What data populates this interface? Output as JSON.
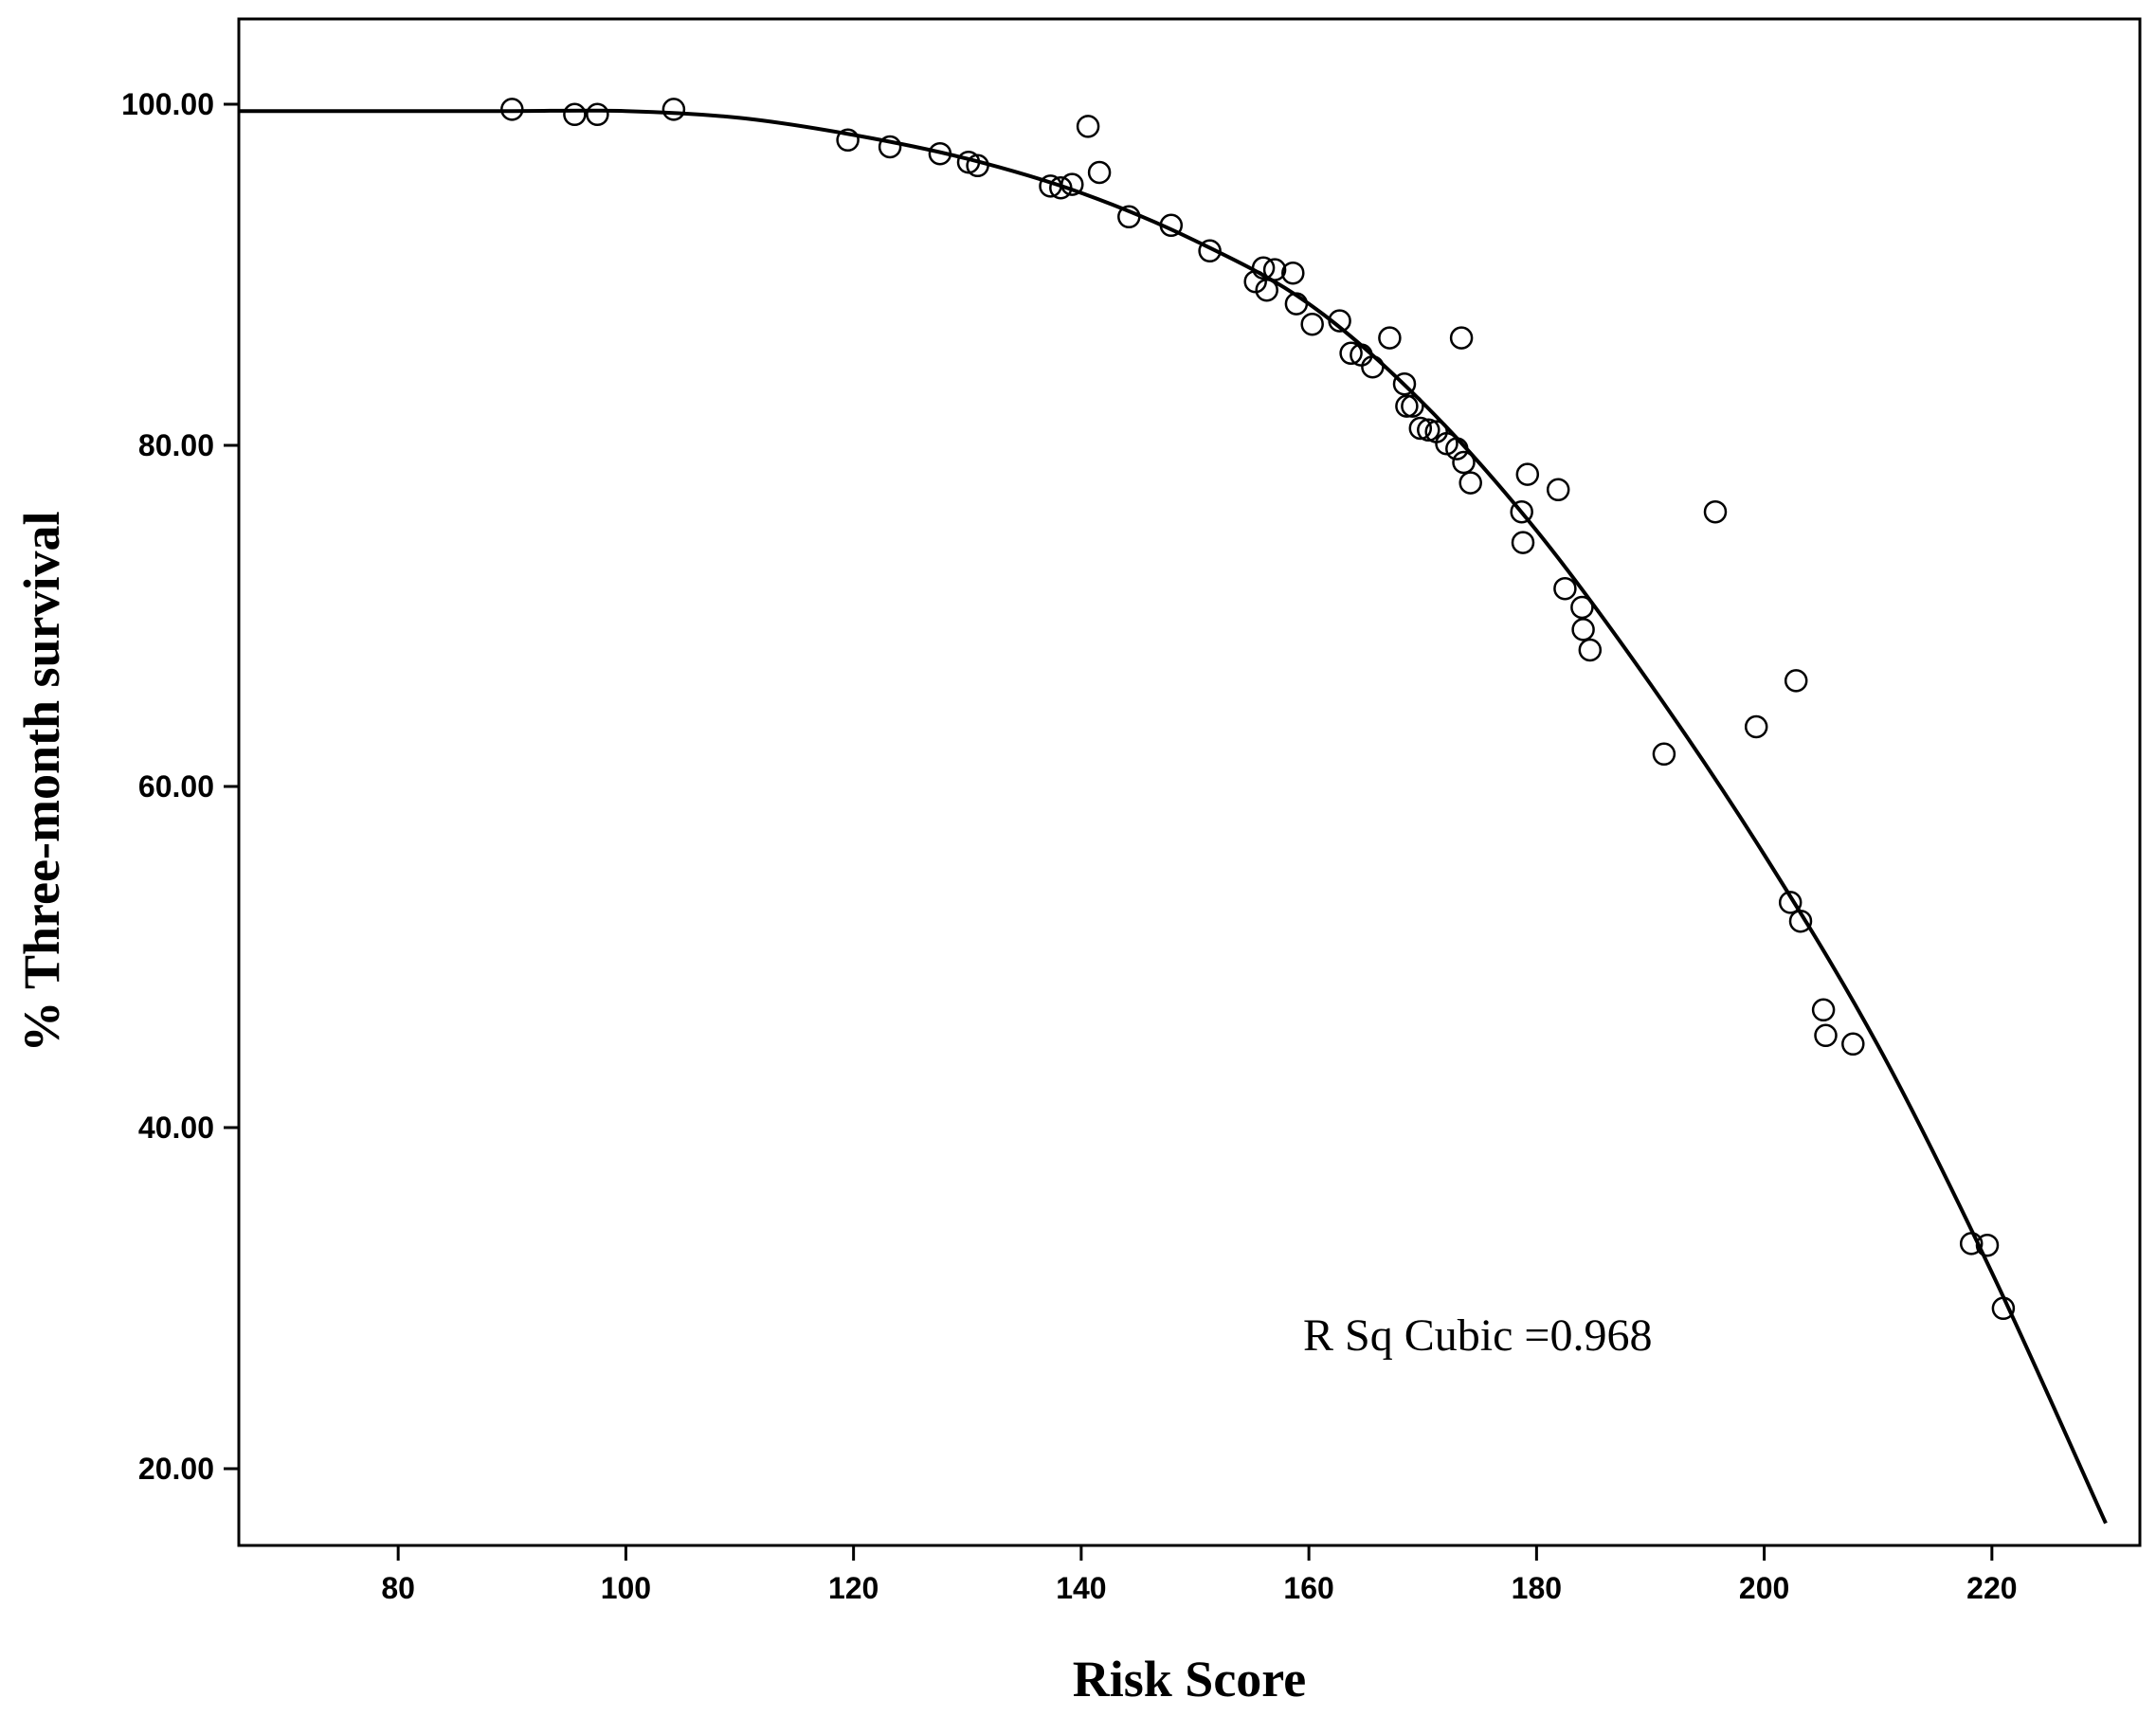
{
  "chart_data": {
    "type": "scatter",
    "title": "",
    "xlabel": "Risk Score",
    "ylabel": "% Three-month survival",
    "xlim": [
      66,
      233
    ],
    "ylim": [
      15.5,
      105
    ],
    "x_ticks": [
      80,
      100,
      120,
      140,
      160,
      180,
      200,
      220
    ],
    "y_ticks": [
      20,
      40,
      60,
      80,
      100
    ],
    "x_tick_labels": [
      "80",
      "100",
      "120",
      "140",
      "160",
      "180",
      "200",
      "220"
    ],
    "y_tick_labels": [
      "20.00",
      "40.00",
      "60.00",
      "80.00",
      "100.00"
    ],
    "grid": false,
    "legend": "none",
    "annotation": "R Sq Cubic =0.968",
    "marker_color": "#000000",
    "points": [
      {
        "x": 90,
        "y": 99.7
      },
      {
        "x": 95.5,
        "y": 99.4
      },
      {
        "x": 97.5,
        "y": 99.4
      },
      {
        "x": 104.2,
        "y": 99.7
      },
      {
        "x": 119.5,
        "y": 97.9
      },
      {
        "x": 123.2,
        "y": 97.5
      },
      {
        "x": 127.6,
        "y": 97.1
      },
      {
        "x": 130.1,
        "y": 96.6
      },
      {
        "x": 130.9,
        "y": 96.4
      },
      {
        "x": 137.3,
        "y": 95.2
      },
      {
        "x": 138.2,
        "y": 95.1
      },
      {
        "x": 139.2,
        "y": 95.3
      },
      {
        "x": 140.6,
        "y": 98.7
      },
      {
        "x": 141.6,
        "y": 96.0
      },
      {
        "x": 144.2,
        "y": 93.4
      },
      {
        "x": 147.9,
        "y": 92.9
      },
      {
        "x": 151.3,
        "y": 91.4
      },
      {
        "x": 155.3,
        "y": 89.6
      },
      {
        "x": 156.0,
        "y": 90.4
      },
      {
        "x": 156.3,
        "y": 89.1
      },
      {
        "x": 157.0,
        "y": 90.3
      },
      {
        "x": 158.6,
        "y": 90.1
      },
      {
        "x": 158.9,
        "y": 88.3
      },
      {
        "x": 160.3,
        "y": 87.1
      },
      {
        "x": 162.7,
        "y": 87.3
      },
      {
        "x": 163.7,
        "y": 85.4
      },
      {
        "x": 164.6,
        "y": 85.3
      },
      {
        "x": 165.6,
        "y": 84.6
      },
      {
        "x": 167.1,
        "y": 86.3
      },
      {
        "x": 168.4,
        "y": 83.6
      },
      {
        "x": 168.6,
        "y": 82.3
      },
      {
        "x": 169.1,
        "y": 82.3
      },
      {
        "x": 169.8,
        "y": 81.0
      },
      {
        "x": 170.5,
        "y": 80.9
      },
      {
        "x": 171.2,
        "y": 80.8
      },
      {
        "x": 172.1,
        "y": 80.1
      },
      {
        "x": 173.0,
        "y": 79.8
      },
      {
        "x": 173.4,
        "y": 86.3
      },
      {
        "x": 173.6,
        "y": 79.0
      },
      {
        "x": 174.2,
        "y": 77.8
      },
      {
        "x": 178.7,
        "y": 76.1
      },
      {
        "x": 178.8,
        "y": 74.3
      },
      {
        "x": 179.2,
        "y": 78.3
      },
      {
        "x": 181.9,
        "y": 77.4
      },
      {
        "x": 182.5,
        "y": 71.6
      },
      {
        "x": 184.0,
        "y": 70.5
      },
      {
        "x": 184.1,
        "y": 69.2
      },
      {
        "x": 184.7,
        "y": 68.0
      },
      {
        "x": 191.2,
        "y": 61.9
      },
      {
        "x": 195.7,
        "y": 76.1
      },
      {
        "x": 199.3,
        "y": 63.5
      },
      {
        "x": 202.8,
        "y": 66.2
      },
      {
        "x": 202.3,
        "y": 53.2
      },
      {
        "x": 203.2,
        "y": 52.1
      },
      {
        "x": 205.2,
        "y": 46.9
      },
      {
        "x": 205.4,
        "y": 45.4
      },
      {
        "x": 207.8,
        "y": 44.9
      },
      {
        "x": 218.2,
        "y": 33.2
      },
      {
        "x": 219.6,
        "y": 33.1
      },
      {
        "x": 221.0,
        "y": 29.4
      }
    ],
    "fit_curve": {
      "type": "cubic",
      "x": [
        66,
        80,
        90,
        100,
        110,
        120,
        130,
        140,
        150,
        160,
        170,
        180,
        190,
        200,
        210,
        220,
        230
      ],
      "y": [
        99.6,
        99.6,
        99.6,
        99.6,
        99.2,
        98.2,
        96.8,
        94.8,
        92.0,
        88.3,
        82.5,
        75.0,
        66.0,
        56.0,
        44.8,
        31.5,
        16.8
      ]
    }
  }
}
